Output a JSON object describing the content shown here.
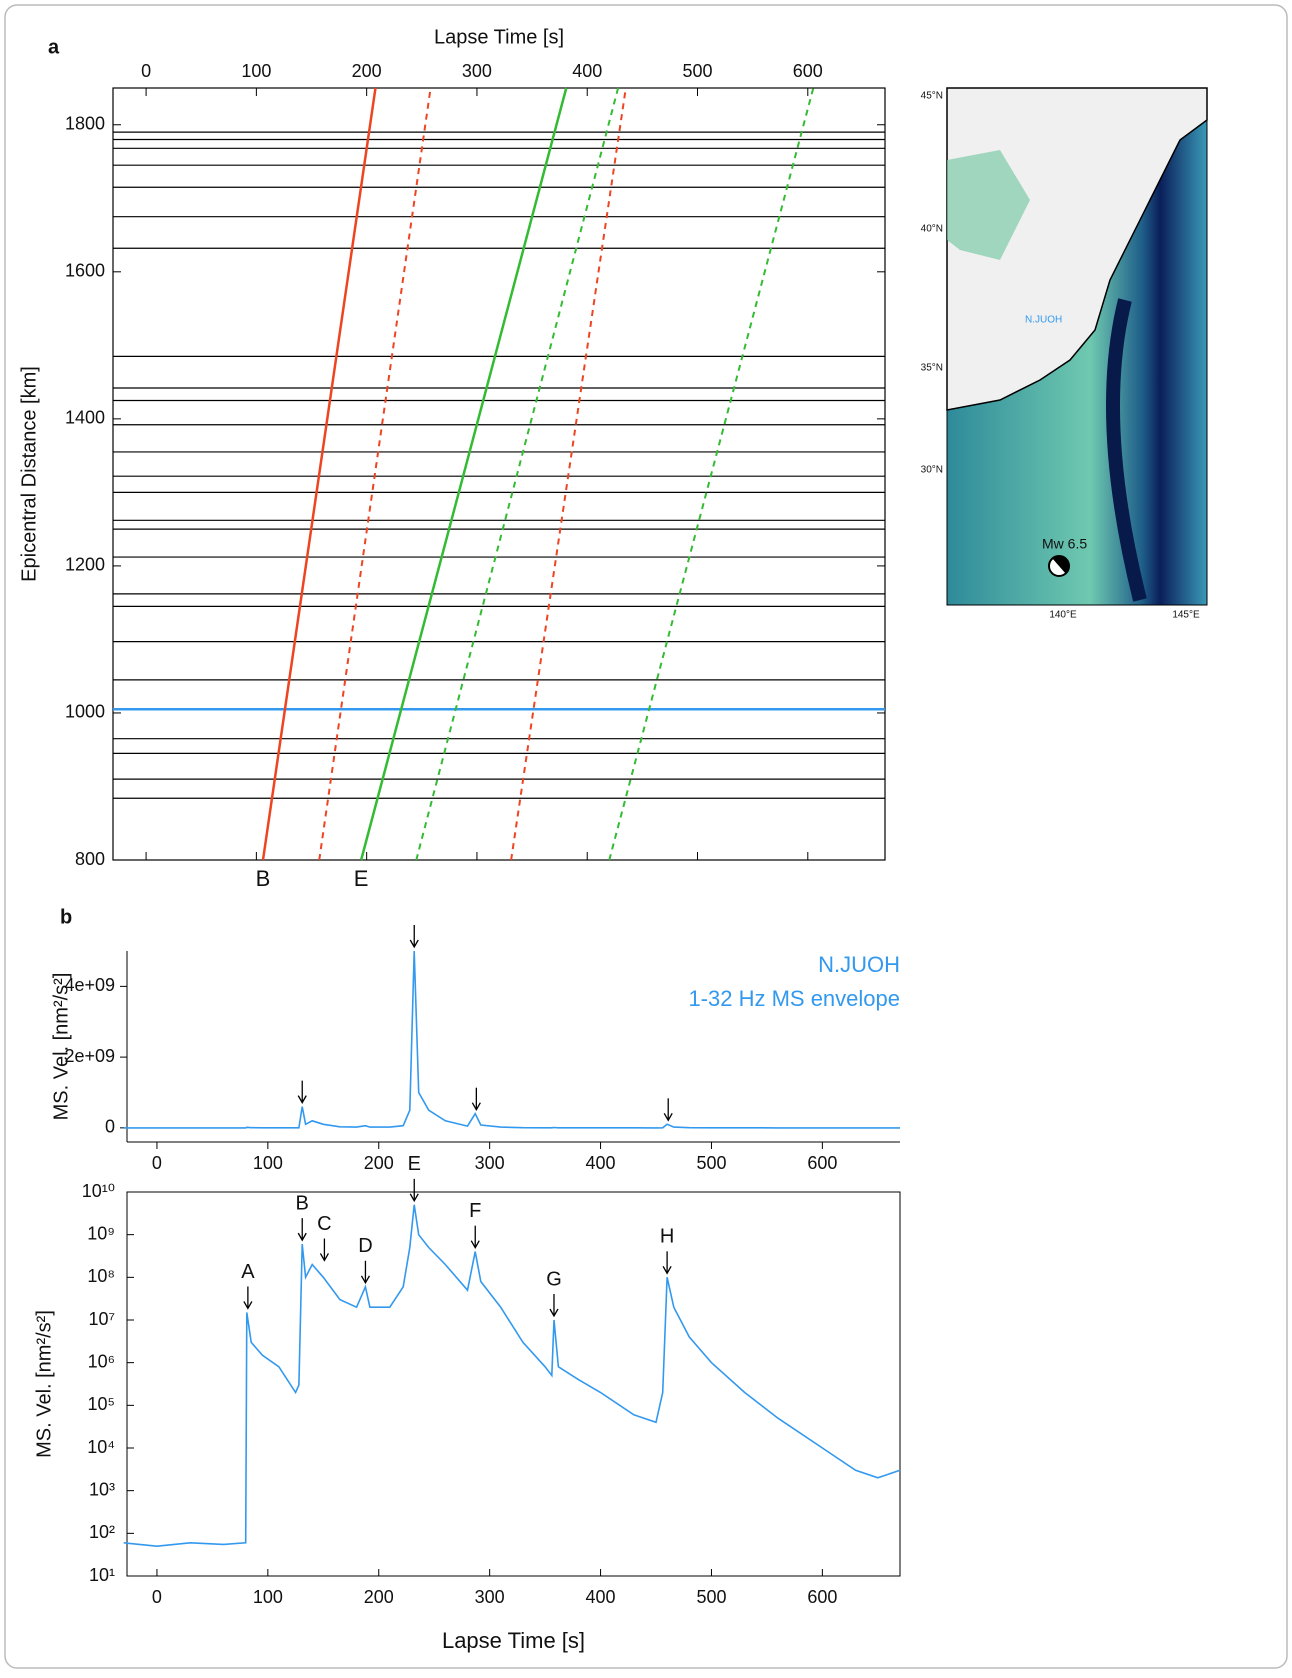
{
  "panel_labels": [
    "a",
    "b"
  ],
  "map": {
    "lat_labels": [
      "45°N",
      "40°N",
      "35°N",
      "30°N"
    ],
    "lon_labels": [
      "140°E",
      "145°E"
    ],
    "station": "N.JUOH",
    "event": "Mw 6.5"
  },
  "chart_data": [
    {
      "type": "seismic_section",
      "xlabel": "Lapse Time [s]",
      "ylabel": "Epicentral Distance [km]",
      "xlim": [
        -30,
        670
      ],
      "ylim": [
        800,
        1850
      ],
      "xticks": [
        0,
        100,
        200,
        300,
        400,
        500,
        600
      ],
      "yticks": [
        800,
        1000,
        1200,
        1400,
        1600,
        1800
      ],
      "trace_color": "#000000",
      "trace_distances": [
        1790,
        1780,
        1768,
        1745,
        1715,
        1675,
        1632,
        1485,
        1442,
        1425,
        1392,
        1355,
        1322,
        1300,
        1262,
        1250,
        1212,
        1162,
        1145,
        1097,
        1045,
        1005,
        965,
        945,
        910,
        884
      ],
      "highlight": {
        "distance": 1005,
        "color": "#3399ee"
      },
      "phase_lines": [
        {
          "label": "B",
          "color": "#ee4422",
          "dashed": false,
          "x": [
            106,
            208
          ],
          "y": [
            800,
            1850
          ]
        },
        {
          "color": "#ee4422",
          "dashed": true,
          "x": [
            157,
            258
          ],
          "y": [
            800,
            1850
          ]
        },
        {
          "color": "#ee4422",
          "dashed": true,
          "x": [
            331,
            435
          ],
          "y": [
            800,
            1850
          ]
        },
        {
          "label": "E",
          "color": "#33bb33",
          "dashed": false,
          "x": [
            195,
            381
          ],
          "y": [
            800,
            1850
          ]
        },
        {
          "color": "#33bb33",
          "dashed": true,
          "x": [
            245,
            428
          ],
          "y": [
            800,
            1850
          ]
        },
        {
          "color": "#33bb33",
          "dashed": true,
          "x": [
            420,
            605
          ],
          "y": [
            800,
            1850
          ]
        }
      ]
    },
    {
      "type": "line",
      "ylabel": "MS. Vel. [nm²/s²]",
      "legend_text": [
        "N.JUOH",
        "1-32 Hz MS envelope"
      ],
      "color": "#3399ee",
      "xlim": [
        -27,
        670
      ],
      "ylim": [
        -400000000,
        5000000000
      ],
      "xticks": [
        0,
        100,
        200,
        300,
        400,
        500,
        600
      ],
      "yticks": [
        0,
        {
          "value": 2000000000,
          "label": "2e+09"
        },
        {
          "value": 4000000000,
          "label": "4e+09"
        }
      ],
      "x": [
        -30,
        0,
        30,
        60,
        80,
        81,
        85,
        95,
        110,
        125,
        128,
        131,
        134,
        140,
        150,
        165,
        180,
        188,
        192,
        210,
        222,
        228,
        232,
        236,
        245,
        260,
        280,
        287,
        292,
        310,
        330,
        350,
        356,
        358,
        362,
        380,
        400,
        430,
        450,
        456,
        460,
        466,
        480,
        500,
        530,
        560,
        600,
        630,
        650,
        670
      ],
      "values": [
        60,
        50,
        60,
        55,
        60,
        15000000.0,
        3000000.0,
        1500000.0,
        800000.0,
        200000.0,
        300000.0,
        600000000.0,
        100000000.0,
        200000000.0,
        100000000.0,
        30000000.0,
        20000000.0,
        60000000.0,
        20000000.0,
        20000000.0,
        60000000.0,
        500000000.0,
        5000000000.0,
        1000000000.0,
        500000000.0,
        200000000.0,
        50000000.0,
        400000000.0,
        80000000.0,
        20000000.0,
        3000000.0,
        800000.0,
        500000.0,
        10000000.0,
        800000.0,
        400000.0,
        200000.0,
        60000.0,
        40000.0,
        200000.0,
        100000000.0,
        20000000.0,
        4000000.0,
        1000000.0,
        200000.0,
        50000.0,
        10000.0,
        3000.0,
        2000.0,
        3000.0
      ],
      "arrows": [
        {
          "x": 131,
          "y": 600000000.0
        },
        {
          "x": 232,
          "y": 5000000000.0
        },
        {
          "x": 288,
          "y": 400000000.0
        },
        {
          "x": 461,
          "y": 100000000.0
        }
      ]
    },
    {
      "type": "line",
      "log_scale": true,
      "xlabel": "Lapse Time [s]",
      "ylabel": "MS. Vel. [nm²/s²]",
      "color": "#3399ee",
      "xlim": [
        -27,
        670
      ],
      "ylim": [
        10,
        10000000000
      ],
      "xticks": [
        0,
        100,
        200,
        300,
        400,
        500,
        600
      ],
      "yticks": [
        {
          "value": 10,
          "label": "10¹"
        },
        {
          "value": 100,
          "label": "10²"
        },
        {
          "value": 1000,
          "label": "10³"
        },
        {
          "value": 10000,
          "label": "10⁴"
        },
        {
          "value": 100000,
          "label": "10⁵"
        },
        {
          "value": 1000000,
          "label": "10⁶"
        },
        {
          "value": 10000000,
          "label": "10⁷"
        },
        {
          "value": 100000000,
          "label": "10⁸"
        },
        {
          "value": 1000000000,
          "label": "10⁹"
        },
        {
          "value": 10000000000,
          "label": "10¹⁰"
        }
      ],
      "x": [
        -30,
        0,
        30,
        60,
        80,
        81,
        85,
        95,
        110,
        125,
        128,
        131,
        134,
        140,
        150,
        165,
        180,
        188,
        192,
        210,
        222,
        228,
        232,
        236,
        245,
        260,
        280,
        287,
        292,
        310,
        330,
        350,
        356,
        358,
        362,
        380,
        400,
        430,
        450,
        456,
        460,
        466,
        480,
        500,
        530,
        560,
        600,
        630,
        650,
        670
      ],
      "values": [
        60,
        50,
        60,
        55,
        60,
        15000000.0,
        3000000.0,
        1500000.0,
        800000.0,
        200000.0,
        300000.0,
        600000000.0,
        100000000.0,
        200000000.0,
        100000000.0,
        30000000.0,
        20000000.0,
        60000000.0,
        20000000.0,
        20000000.0,
        60000000.0,
        500000000.0,
        5000000000.0,
        1000000000.0,
        500000000.0,
        200000000.0,
        50000000.0,
        400000000.0,
        80000000.0,
        20000000.0,
        3000000.0,
        800000.0,
        500000.0,
        10000000.0,
        800000.0,
        400000.0,
        200000.0,
        60000.0,
        40000.0,
        200000.0,
        100000000.0,
        20000000.0,
        4000000.0,
        1000000.0,
        200000.0,
        50000.0,
        10000.0,
        3000.0,
        2000.0,
        3000.0
      ],
      "annotations": [
        {
          "label": "A",
          "x": 82,
          "y": 15000000.0
        },
        {
          "label": "B",
          "x": 131,
          "y": 600000000.0
        },
        {
          "label": "C",
          "x": 151,
          "y": 200000000.0
        },
        {
          "label": "D",
          "x": 188,
          "y": 60000000.0
        },
        {
          "label": "E",
          "x": 232,
          "y": 5000000000.0
        },
        {
          "label": "F",
          "x": 287,
          "y": 400000000.0
        },
        {
          "label": "G",
          "x": 358,
          "y": 10000000.0
        },
        {
          "label": "H",
          "x": 460,
          "y": 100000000.0
        }
      ]
    }
  ]
}
